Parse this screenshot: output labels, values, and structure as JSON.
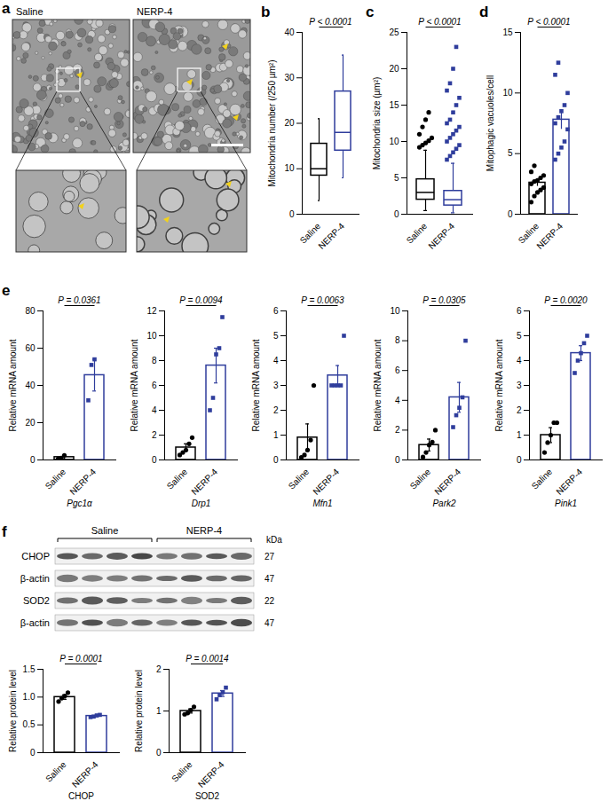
{
  "images": {
    "panel": "a",
    "labels": [
      "Saline",
      "NERP-4"
    ]
  },
  "chart_data": [
    {
      "panel": "b",
      "type": "box",
      "y_label": "Mitochondria number (/250 µm²)",
      "ylim": [
        0,
        40
      ],
      "yticks": [
        0,
        10,
        20,
        30,
        40
      ],
      "annotation": "P < 0.0001",
      "series": [
        {
          "name": "Saline",
          "color": "#000000",
          "min": 3,
          "q1": 8.5,
          "median": 10,
          "q3": 15.5,
          "max": 21
        },
        {
          "name": "NERP-4",
          "color": "#2f3d9c",
          "min": 8,
          "q1": 14,
          "median": 18,
          "q3": 27,
          "max": 35
        }
      ]
    },
    {
      "panel": "c",
      "type": "box",
      "y_label": "Mitochondria size (µm²)",
      "ylim": [
        0,
        25
      ],
      "yticks": [
        0,
        5,
        10,
        15,
        20,
        25
      ],
      "annotation": "P < 0.0001",
      "series": [
        {
          "name": "Saline",
          "color": "#000000",
          "marker": "circle",
          "min": 0.5,
          "q1": 2,
          "median": 3,
          "q3": 4.8,
          "max": 8.8,
          "outliers": [
            9.2,
            9.5,
            9.8,
            10.1,
            10.5,
            11,
            12,
            13,
            14
          ]
        },
        {
          "name": "NERP-4",
          "color": "#2f3d9c",
          "marker": "square",
          "min": 0.2,
          "q1": 1.2,
          "median": 2,
          "q3": 3.2,
          "max": 7,
          "outliers": [
            7.5,
            8,
            8.5,
            9,
            9.5,
            10,
            10.5,
            11,
            11.5,
            12,
            12.5,
            13,
            14,
            15,
            16,
            17,
            18,
            20,
            23
          ]
        }
      ]
    },
    {
      "panel": "d",
      "type": "bar",
      "y_label": "Mitophagic vacuoles/cell",
      "ylim": [
        0,
        15
      ],
      "yticks": [
        0,
        5,
        10,
        15
      ],
      "annotation": "P < 0.0001",
      "series": [
        {
          "name": "Saline",
          "color": "#000000",
          "marker": "circle",
          "value": 2.6,
          "error": 0.3,
          "points": [
            1,
            1.5,
            1.8,
            2,
            2.2,
            2.5,
            2.7,
            2.8,
            3,
            3.2,
            3.5,
            4
          ]
        },
        {
          "name": "NERP-4",
          "color": "#2f3d9c",
          "marker": "square",
          "value": 7.8,
          "error": 0.8,
          "points": [
            4.5,
            5,
            5.5,
            6,
            7,
            7.5,
            8,
            8.5,
            9,
            10,
            11.5,
            12.5
          ]
        }
      ]
    },
    {
      "panel": "e",
      "type": "bar",
      "x_label": "Pgc1α",
      "y_label": "Relative mRNA amount",
      "ylim": [
        0,
        80
      ],
      "yticks": [
        0,
        20,
        40,
        60,
        80
      ],
      "annotation": "P = 0.0361",
      "series": [
        {
          "name": "Saline",
          "color": "#000000",
          "marker": "circle",
          "value": 1.5,
          "error": 1,
          "points": [
            0.5,
            1,
            2.5
          ]
        },
        {
          "name": "NERP-4",
          "color": "#2f3d9c",
          "marker": "square",
          "value": 45.5,
          "error": 8.5,
          "points": [
            32,
            51,
            54
          ]
        }
      ]
    },
    {
      "type": "bar",
      "x_label": "Drp1",
      "y_label": "Relative mRNA amount",
      "ylim": [
        0,
        12
      ],
      "yticks": [
        0,
        2,
        4,
        6,
        8,
        10,
        12
      ],
      "annotation": "P = 0.0094",
      "series": [
        {
          "name": "Saline",
          "color": "#000000",
          "marker": "circle",
          "value": 1,
          "error": 0.3,
          "points": [
            0.4,
            0.6,
            0.8,
            1.3,
            1.8
          ]
        },
        {
          "name": "NERP-4",
          "color": "#2f3d9c",
          "marker": "square",
          "value": 7.6,
          "error": 1.4,
          "points": [
            4,
            5,
            8.5,
            9,
            11.5
          ]
        }
      ]
    },
    {
      "type": "bar",
      "x_label": "Mfn1",
      "y_label": "Relative mRNA amount",
      "ylim": [
        0,
        6
      ],
      "yticks": [
        0,
        1,
        2,
        3,
        4,
        5,
        6
      ],
      "annotation": "P = 0.0063",
      "series": [
        {
          "name": "Saline",
          "color": "#000000",
          "marker": "circle",
          "value": 0.9,
          "error": 0.55,
          "points": [
            0.1,
            0.2,
            0.4,
            0.8,
            3
          ]
        },
        {
          "name": "NERP-4",
          "color": "#2f3d9c",
          "marker": "square",
          "value": 3.4,
          "error": 0.4,
          "points": [
            3,
            3,
            3,
            3,
            5
          ]
        }
      ]
    },
    {
      "type": "bar",
      "x_label": "Park2",
      "y_label": "Relative mRNA amount",
      "ylim": [
        0,
        10
      ],
      "yticks": [
        0,
        2,
        4,
        6,
        8,
        10
      ],
      "annotation": "P = 0.0305",
      "series": [
        {
          "name": "Saline",
          "color": "#000000",
          "marker": "circle",
          "value": 1,
          "error": 0.4,
          "points": [
            0.2,
            0.5,
            1,
            1.2,
            2
          ]
        },
        {
          "name": "NERP-4",
          "color": "#2f3d9c",
          "marker": "square",
          "value": 4.2,
          "error": 1,
          "points": [
            2.2,
            3,
            3.5,
            4.2,
            8
          ]
        }
      ]
    },
    {
      "type": "bar",
      "x_label": "Pink1",
      "y_label": "Relative mRNA amount",
      "ylim": [
        0,
        6
      ],
      "yticks": [
        0,
        1,
        2,
        3,
        4,
        5,
        6
      ],
      "annotation": "P = 0.0020",
      "series": [
        {
          "name": "Saline",
          "color": "#000000",
          "marker": "circle",
          "value": 1,
          "error": 0.3,
          "points": [
            0.3,
            0.7,
            1,
            1.5,
            1.5
          ]
        },
        {
          "name": "NERP-4",
          "color": "#2f3d9c",
          "marker": "square",
          "value": 4.3,
          "error": 0.3,
          "points": [
            3.5,
            4,
            4.3,
            4.7,
            5
          ]
        }
      ]
    },
    {
      "type": "bar",
      "x_label": "CHOP",
      "y_label": "Relative protein level",
      "ylim": [
        0,
        1.5
      ],
      "yticks": [
        0,
        0.5,
        {
          "value": 1,
          "label": "1.0"
        },
        1.5
      ],
      "annotation": "P = 0.0001",
      "series": [
        {
          "name": "Saline",
          "color": "#000000",
          "marker": "circle",
          "value": 1,
          "error": 0.04,
          "points": [
            0.92,
            0.98,
            1.02,
            1.08
          ]
        },
        {
          "name": "NERP-4",
          "color": "#2f3d9c",
          "marker": "square",
          "value": 0.66,
          "error": 0.01,
          "points": [
            0.64,
            0.65,
            0.67,
            0.68
          ]
        }
      ]
    },
    {
      "type": "bar",
      "x_label": "SOD2",
      "y_label": "Relative protein level",
      "ylim": [
        0,
        2
      ],
      "yticks": [
        0,
        1,
        2
      ],
      "annotation": "P = 0.0014",
      "series": [
        {
          "name": "Saline",
          "color": "#000000",
          "marker": "circle",
          "value": 1,
          "error": 0.05,
          "points": [
            0.92,
            0.95,
            1.02,
            1.1
          ]
        },
        {
          "name": "NERP-4",
          "color": "#2f3d9c",
          "marker": "square",
          "value": 1.42,
          "error": 0.07,
          "points": [
            1.28,
            1.38,
            1.45,
            1.56
          ]
        }
      ]
    }
  ],
  "blot": {
    "panel": "f",
    "groups": [
      "Saline",
      "NERP-4"
    ],
    "unit": "kDa",
    "rows": [
      {
        "label": "CHOP",
        "kda": 27
      },
      {
        "label": "β-actin",
        "kda": 47
      },
      {
        "label": "SOD2",
        "kda": 22
      },
      {
        "label": "β-actin",
        "kda": 47
      }
    ]
  }
}
